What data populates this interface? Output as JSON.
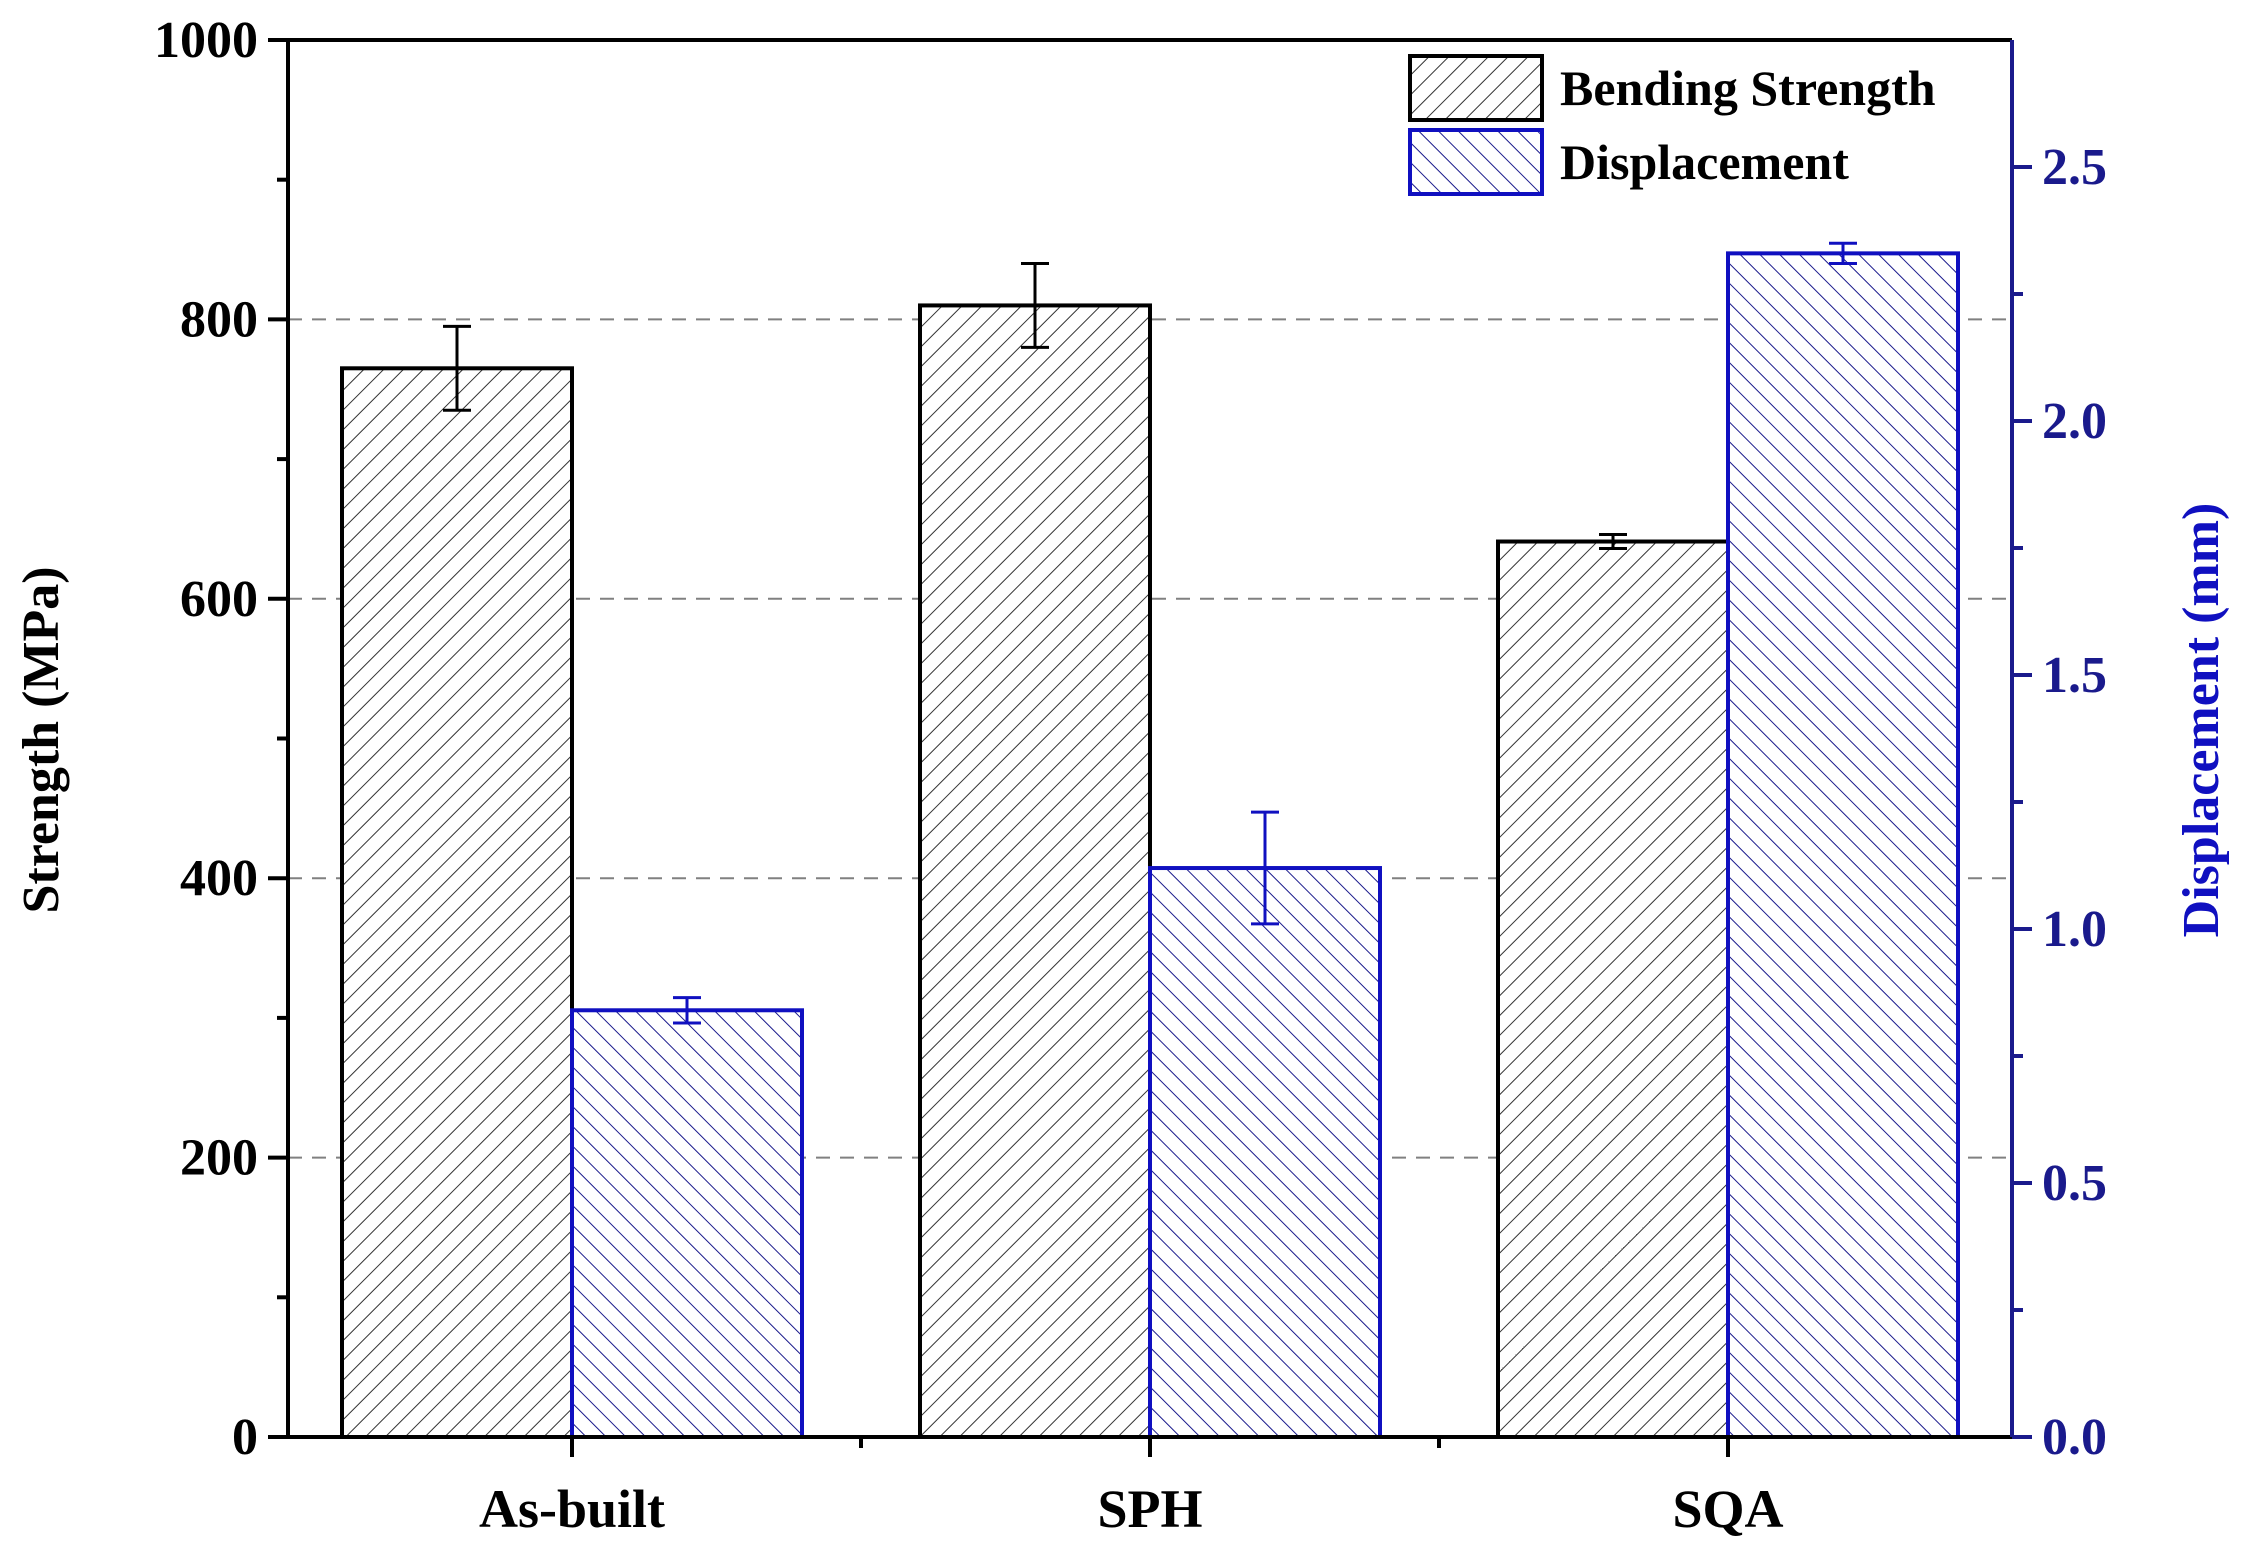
{
  "colors": {
    "strength": "#000000",
    "displacement": "#1010c0",
    "grid": "#808080",
    "right_axis": "#1a1a8c"
  },
  "chart_data": {
    "type": "bar",
    "categories": [
      "As-built",
      "SPH",
      "SQA"
    ],
    "series": [
      {
        "name": "Bending Strength",
        "axis": "left",
        "values": [
          765,
          810,
          641
        ],
        "errors": [
          30,
          30,
          5
        ]
      },
      {
        "name": "Displacement",
        "axis": "right",
        "values": [
          0.84,
          1.12,
          2.33
        ],
        "errors": [
          0.025,
          0.11,
          0.02
        ]
      }
    ],
    "ylabel": "Strength (MPa)",
    "y2label": "Displacement (mm)",
    "ylim": [
      0,
      1000
    ],
    "y2lim": [
      0,
      2.75
    ],
    "yticks": [
      "0",
      "200",
      "400",
      "600",
      "800",
      "1000"
    ],
    "y2ticks": [
      "0.0",
      "0.5",
      "1.0",
      "1.5",
      "2.0",
      "2.5"
    ],
    "grid": "horizontal dashed at 200, 400, 600, 800",
    "legend_position": "top-right"
  }
}
